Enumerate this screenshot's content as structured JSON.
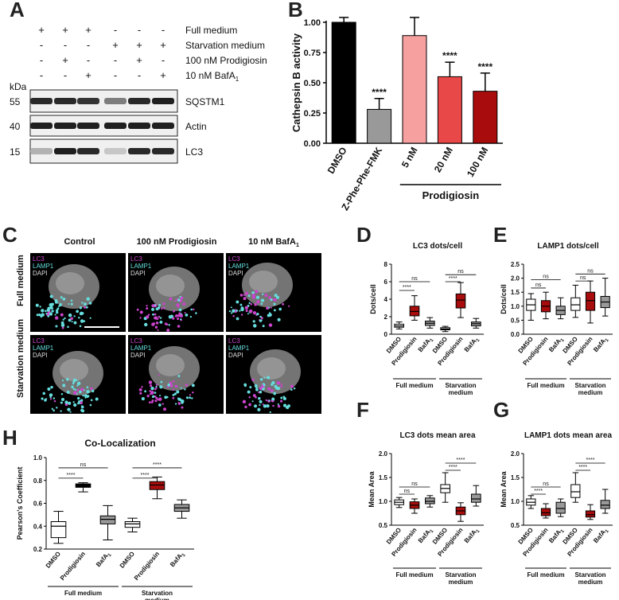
{
  "panels": {
    "a": "A",
    "b": "B",
    "c": "C",
    "d": "D",
    "e": "E",
    "f": "F",
    "g": "G",
    "h": "H"
  },
  "colors": {
    "magenta": "#cc44cc",
    "cyan": "#66dddd",
    "dark_red": "#a80c0c",
    "mid_red": "#e84848",
    "pink": "#f6a0a0",
    "grey": "#999999",
    "black": "#000000"
  },
  "panel_a": {
    "conditions": [
      {
        "label": "Full medium",
        "signs": [
          "+",
          "+",
          "+",
          "-",
          "-",
          "-"
        ]
      },
      {
        "label": "Starvation medium",
        "signs": [
          "-",
          "-",
          "-",
          "+",
          "+",
          "+"
        ]
      },
      {
        "label": "100 nM Prodigiosin",
        "signs": [
          "-",
          "+",
          "-",
          "-",
          "+",
          "-"
        ]
      },
      {
        "label": "10 nM BafA",
        "sub": "1",
        "signs": [
          "-",
          "-",
          "+",
          "-",
          "-",
          "+"
        ]
      }
    ],
    "kda_label": "kDa",
    "blots": [
      {
        "marker": "55",
        "label": "SQSTM1",
        "intensity": [
          0.9,
          0.9,
          0.85,
          0.5,
          0.9,
          0.95
        ]
      },
      {
        "marker": "40",
        "label": "Actin",
        "intensity": [
          0.95,
          0.95,
          0.95,
          0.95,
          0.95,
          0.95
        ]
      },
      {
        "marker": "15",
        "label": "LC3",
        "intensity": [
          0.25,
          0.95,
          0.9,
          0.15,
          0.9,
          0.9
        ]
      }
    ]
  },
  "panel_c": {
    "columns": [
      "Control",
      "100 nM Prodigiosin",
      "10 nM BafA"
    ],
    "column_sub": "1",
    "rows": [
      "Full medium",
      "Starvation medium"
    ],
    "stains": [
      "LC3",
      "LAMP1",
      "DAPI"
    ]
  },
  "chart_data": [
    {
      "id": "B",
      "type": "bar",
      "categories": [
        "DMSO",
        "Z-Phe-Phe-FMK",
        "5 nM",
        "20 nM",
        "100 nM"
      ],
      "values": [
        1.0,
        0.28,
        0.89,
        0.55,
        0.43
      ],
      "errors": [
        0.04,
        0.09,
        0.15,
        0.12,
        0.15
      ],
      "colors": [
        "#000000",
        "#999999",
        "#f6a0a0",
        "#e84848",
        "#a80c0c"
      ],
      "significance": [
        "",
        "****",
        "",
        "****",
        "****"
      ],
      "ylabel": "Cathepsin B activity",
      "ylim": [
        0,
        1.0
      ],
      "yticks": [
        "0.00",
        "0.25",
        "0.50",
        "0.75",
        "1.00"
      ],
      "group_label": "Prodigiosin"
    },
    {
      "id": "D",
      "type": "box",
      "title": "LC3 dots/cell",
      "ylabel": "Dots/cell",
      "ylim": [
        0,
        8
      ],
      "yticks": [
        "0",
        "2",
        "4",
        "6",
        "8"
      ],
      "categories": [
        "DMSO",
        "Prodigiosin",
        "BafA1",
        "DMSO",
        "Prodigiosin",
        "BafA1"
      ],
      "groups": [
        "Full medium",
        "Starvation medium"
      ],
      "boxes": [
        {
          "min": 0.6,
          "q1": 0.8,
          "med": 0.95,
          "q3": 1.15,
          "max": 1.4,
          "color": "#ffffff"
        },
        {
          "min": 1.6,
          "q1": 2.1,
          "med": 2.6,
          "q3": 3.2,
          "max": 4.4,
          "color": "#a80c0c"
        },
        {
          "min": 0.7,
          "q1": 1.0,
          "med": 1.25,
          "q3": 1.5,
          "max": 1.9,
          "color": "#999999"
        },
        {
          "min": 0.3,
          "q1": 0.5,
          "med": 0.6,
          "q3": 0.75,
          "max": 0.9,
          "color": "#ffffff"
        },
        {
          "min": 1.9,
          "q1": 3.0,
          "med": 3.9,
          "q3": 4.6,
          "max": 5.9,
          "color": "#a80c0c"
        },
        {
          "min": 0.7,
          "q1": 0.95,
          "med": 1.2,
          "q3": 1.4,
          "max": 1.8,
          "color": "#999999"
        }
      ],
      "brackets": [
        {
          "from": 0,
          "to": 2,
          "label": "ns",
          "y": 6.0
        },
        {
          "from": 0,
          "to": 1,
          "label": "****",
          "y": 5.0
        },
        {
          "from": 3,
          "to": 5,
          "label": "ns",
          "y": 6.8
        },
        {
          "from": 3,
          "to": 4,
          "label": "****",
          "y": 6.0
        }
      ]
    },
    {
      "id": "E",
      "type": "box",
      "title": "LAMP1 dots/cell",
      "ylabel": "Dots/cell",
      "ylim": [
        0,
        2.5
      ],
      "yticks": [
        "0.0",
        "0.5",
        "1.0",
        "1.5",
        "2.0",
        "2.5"
      ],
      "categories": [
        "DMSO",
        "Prodigiosin",
        "BafA1",
        "DMSO",
        "Prodigiosin",
        "BafA1"
      ],
      "groups": [
        "Full medium",
        "Starvation medium"
      ],
      "boxes": [
        {
          "min": 0.5,
          "q1": 0.85,
          "med": 1.05,
          "q3": 1.25,
          "max": 1.45,
          "color": "#ffffff"
        },
        {
          "min": 0.55,
          "q1": 0.8,
          "med": 1.0,
          "q3": 1.2,
          "max": 1.5,
          "color": "#a80c0c"
        },
        {
          "min": 0.55,
          "q1": 0.7,
          "med": 0.85,
          "q3": 1.0,
          "max": 1.3,
          "color": "#999999"
        },
        {
          "min": 0.6,
          "q1": 0.85,
          "med": 1.05,
          "q3": 1.3,
          "max": 1.75,
          "color": "#ffffff"
        },
        {
          "min": 0.4,
          "q1": 0.85,
          "med": 1.2,
          "q3": 1.5,
          "max": 1.9,
          "color": "#a80c0c"
        },
        {
          "min": 0.65,
          "q1": 0.95,
          "med": 1.15,
          "q3": 1.35,
          "max": 2.0,
          "color": "#999999"
        }
      ],
      "brackets": [
        {
          "from": 0,
          "to": 2,
          "label": "ns",
          "y": 1.95
        },
        {
          "from": 0,
          "to": 1,
          "label": "ns",
          "y": 1.65
        },
        {
          "from": 3,
          "to": 5,
          "label": "ns",
          "y": 2.15
        },
        {
          "from": 3,
          "to": 4,
          "label": "ns",
          "y": 1.9
        }
      ]
    },
    {
      "id": "F",
      "type": "box",
      "title": "LC3 dots mean area",
      "ylabel": "Mean Area",
      "ylim": [
        0.5,
        2.0
      ],
      "yticks": [
        "0.5",
        "1.0",
        "1.5",
        "2.0"
      ],
      "categories": [
        "DMSO",
        "Prodigiosin",
        "BafA1",
        "DMSO",
        "Prodigiosin",
        "BafA1"
      ],
      "groups": [
        "Full medium",
        "Starvation medium"
      ],
      "boxes": [
        {
          "min": 0.87,
          "q1": 0.93,
          "med": 0.98,
          "q3": 1.03,
          "max": 1.08,
          "color": "#ffffff"
        },
        {
          "min": 0.75,
          "q1": 0.85,
          "med": 0.92,
          "q3": 0.99,
          "max": 1.05,
          "color": "#a80c0c"
        },
        {
          "min": 0.88,
          "q1": 0.95,
          "med": 1.0,
          "q3": 1.07,
          "max": 1.12,
          "color": "#999999"
        },
        {
          "min": 0.98,
          "q1": 1.18,
          "med": 1.27,
          "q3": 1.35,
          "max": 1.6,
          "color": "#ffffff"
        },
        {
          "min": 0.58,
          "q1": 0.72,
          "med": 0.8,
          "q3": 0.88,
          "max": 0.97,
          "color": "#a80c0c"
        },
        {
          "min": 0.9,
          "q1": 0.98,
          "med": 1.05,
          "q3": 1.15,
          "max": 1.33,
          "color": "#999999"
        }
      ],
      "brackets": [
        {
          "from": 0,
          "to": 2,
          "label": "ns",
          "y": 1.3
        },
        {
          "from": 0,
          "to": 1,
          "label": "ns",
          "y": 1.15
        },
        {
          "from": 3,
          "to": 5,
          "label": "****",
          "y": 1.8
        },
        {
          "from": 3,
          "to": 4,
          "label": "****",
          "y": 1.65
        }
      ]
    },
    {
      "id": "G",
      "type": "box",
      "title": "LAMP1 dots mean area",
      "ylabel": "Mean Area",
      "ylim": [
        0.5,
        2.0
      ],
      "yticks": [
        "0.5",
        "1.0",
        "1.5",
        "2.0"
      ],
      "categories": [
        "DMSO",
        "Prodigiosin",
        "BafA1",
        "DMSO",
        "Prodigiosin",
        "BafA1"
      ],
      "groups": [
        "Full medium",
        "Starvation medium"
      ],
      "boxes": [
        {
          "min": 0.85,
          "q1": 0.92,
          "med": 0.98,
          "q3": 1.05,
          "max": 1.12,
          "color": "#ffffff"
        },
        {
          "min": 0.65,
          "q1": 0.7,
          "med": 0.76,
          "q3": 0.85,
          "max": 0.95,
          "color": "#a80c0c"
        },
        {
          "min": 0.68,
          "q1": 0.75,
          "med": 0.85,
          "q3": 0.98,
          "max": 1.05,
          "color": "#999999"
        },
        {
          "min": 0.98,
          "q1": 1.08,
          "med": 1.2,
          "q3": 1.35,
          "max": 1.6,
          "color": "#ffffff"
        },
        {
          "min": 0.62,
          "q1": 0.67,
          "med": 0.72,
          "q3": 0.8,
          "max": 0.93,
          "color": "#a80c0c"
        },
        {
          "min": 0.75,
          "q1": 0.85,
          "med": 0.92,
          "q3": 1.02,
          "max": 1.25,
          "color": "#999999"
        }
      ],
      "brackets": [
        {
          "from": 0,
          "to": 2,
          "label": "ns",
          "y": 1.3
        },
        {
          "from": 0,
          "to": 1,
          "label": "****",
          "y": 1.15
        },
        {
          "from": 3,
          "to": 5,
          "label": "****",
          "y": 1.8
        },
        {
          "from": 3,
          "to": 4,
          "label": "****",
          "y": 1.65
        }
      ]
    },
    {
      "id": "H",
      "type": "box",
      "title": "Co-Localization",
      "ylabel": "Pearson's Coefficient",
      "ylim": [
        0.2,
        1.0
      ],
      "yticks": [
        "0.2",
        "0.4",
        "0.6",
        "0.8",
        "1.0"
      ],
      "categories": [
        "DMSO",
        "Prodigiosin",
        "BafA1",
        "DMSO",
        "Prodigiosin",
        "BafA1"
      ],
      "groups": [
        "Full medium",
        "Starvation medium"
      ],
      "boxes": [
        {
          "min": 0.25,
          "q1": 0.3,
          "med": 0.4,
          "q3": 0.44,
          "max": 0.53,
          "color": "#ffffff"
        },
        {
          "min": 0.7,
          "q1": 0.74,
          "med": 0.76,
          "q3": 0.77,
          "max": 0.78,
          "color": "#000000"
        },
        {
          "min": 0.28,
          "q1": 0.42,
          "med": 0.46,
          "q3": 0.49,
          "max": 0.58,
          "color": "#999999"
        },
        {
          "min": 0.35,
          "q1": 0.39,
          "med": 0.42,
          "q3": 0.44,
          "max": 0.47,
          "color": "#ffffff"
        },
        {
          "min": 0.64,
          "q1": 0.72,
          "med": 0.76,
          "q3": 0.79,
          "max": 0.83,
          "color": "#a80c0c"
        },
        {
          "min": 0.47,
          "q1": 0.53,
          "med": 0.56,
          "q3": 0.59,
          "max": 0.63,
          "color": "#999999"
        }
      ],
      "brackets": [
        {
          "from": 0,
          "to": 2,
          "label": "ns",
          "y": 0.91
        },
        {
          "from": 0,
          "to": 1,
          "label": "****",
          "y": 0.82
        },
        {
          "from": 3,
          "to": 5,
          "label": "****",
          "y": 0.91
        },
        {
          "from": 3,
          "to": 4,
          "label": "****",
          "y": 0.82
        }
      ]
    }
  ]
}
